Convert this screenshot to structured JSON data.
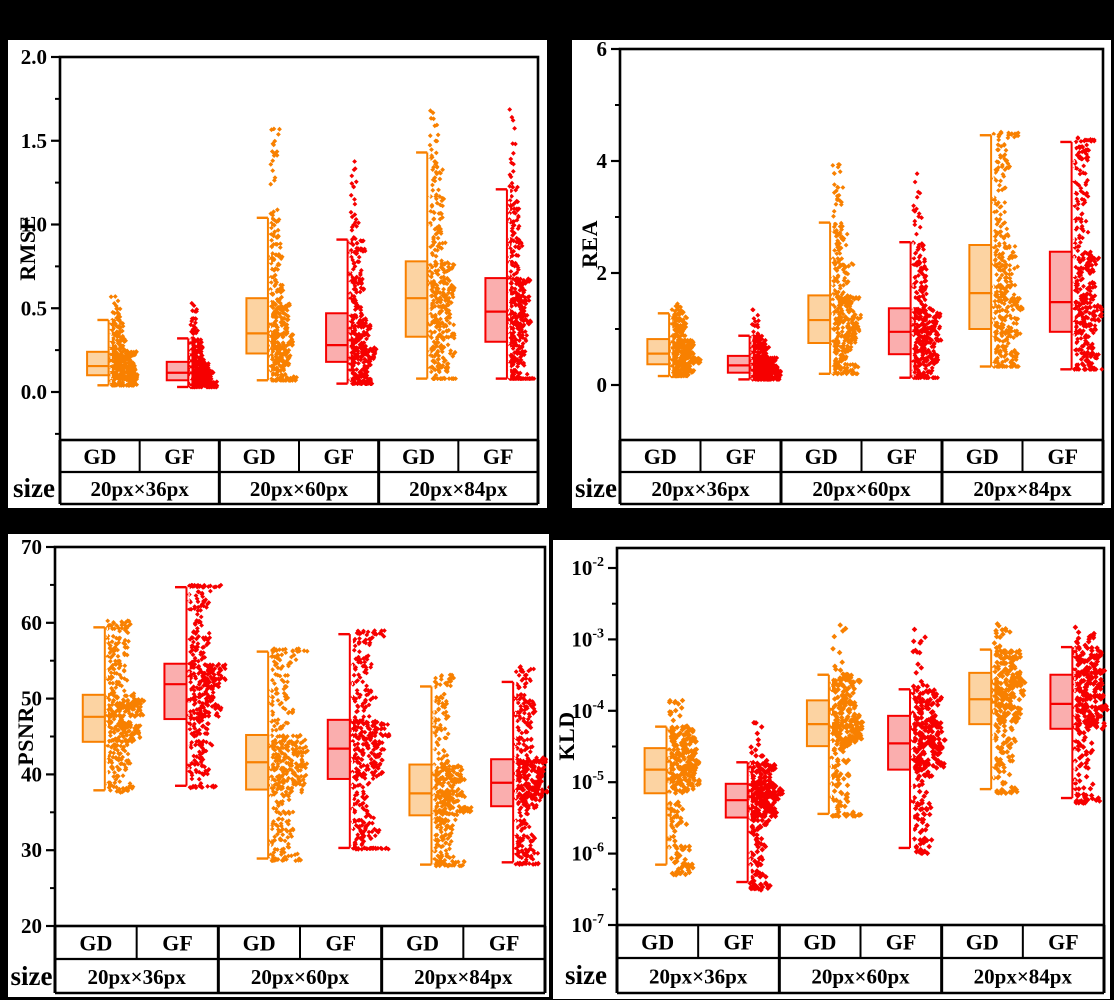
{
  "figure": {
    "background": "#000000",
    "panel_background": "#ffffff",
    "axis_color": "#000000"
  },
  "series_colors": {
    "GD": {
      "stroke": "#F88000",
      "fill": "#FCD3A2"
    },
    "GF": {
      "stroke": "#F60000",
      "fill": "#FAAEAE"
    }
  },
  "x_table": {
    "size_label": "size",
    "header_cells": [
      "GD",
      "GF",
      "GD",
      "GF",
      "GD",
      "GF"
    ],
    "size_groups": [
      "20px×36px",
      "20px×60px",
      "20px×84px"
    ]
  },
  "chart_data": [
    {
      "id": "rmse",
      "type": "box+scatter",
      "ylabel": "RMSE",
      "scale": "linear",
      "ylim": [
        -0.287,
        2.0
      ],
      "yticks": [
        {
          "v": 0.0,
          "t": "0.0"
        },
        {
          "v": 0.5,
          "t": "0.5"
        },
        {
          "v": 1.0,
          "t": "1.0"
        },
        {
          "v": 1.5,
          "t": "1.5"
        },
        {
          "v": 2.0,
          "t": "2.0"
        }
      ],
      "yminor": [
        -0.25,
        0.25,
        0.75,
        1.25,
        1.75
      ],
      "groups": [
        {
          "series": "GD",
          "size": "20px×36px",
          "stats": {
            "pmin": 0.04,
            "lo": 0.04,
            "q1": 0.1,
            "med": 0.155,
            "q3": 0.24,
            "hi": 0.43,
            "pmax": 0.58
          }
        },
        {
          "series": "GF",
          "size": "20px×36px",
          "stats": {
            "pmin": 0.03,
            "lo": 0.03,
            "q1": 0.07,
            "med": 0.115,
            "q3": 0.18,
            "hi": 0.32,
            "pmax": 0.53
          }
        },
        {
          "series": "GD",
          "size": "20px×60px",
          "stats": {
            "pmin": 0.07,
            "lo": 0.07,
            "q1": 0.23,
            "med": 0.35,
            "q3": 0.56,
            "hi": 1.04,
            "pmax": 1.6
          }
        },
        {
          "series": "GF",
          "size": "20px×60px",
          "stats": {
            "pmin": 0.05,
            "lo": 0.05,
            "q1": 0.18,
            "med": 0.28,
            "q3": 0.47,
            "hi": 0.91,
            "pmax": 1.38
          }
        },
        {
          "series": "GD",
          "size": "20px×84px",
          "stats": {
            "pmin": 0.08,
            "lo": 0.08,
            "q1": 0.33,
            "med": 0.56,
            "q3": 0.78,
            "hi": 1.43,
            "pmax": 1.72
          }
        },
        {
          "series": "GF",
          "size": "20px×84px",
          "stats": {
            "pmin": 0.08,
            "lo": 0.08,
            "q1": 0.3,
            "med": 0.48,
            "q3": 0.68,
            "hi": 1.21,
            "pmax": 1.69
          }
        }
      ]
    },
    {
      "id": "rea",
      "type": "box+scatter",
      "ylabel": "REA",
      "scale": "linear",
      "ylim": [
        -0.98,
        6
      ],
      "yticks": [
        {
          "v": 0,
          "t": "0"
        },
        {
          "v": 2,
          "t": "2"
        },
        {
          "v": 4,
          "t": "4"
        },
        {
          "v": 6,
          "t": "6"
        }
      ],
      "yminor": [
        1,
        3,
        5
      ],
      "groups": [
        {
          "series": "GD",
          "size": "20px×36px",
          "stats": {
            "pmin": 0.16,
            "lo": 0.16,
            "q1": 0.37,
            "med": 0.56,
            "q3": 0.82,
            "hi": 1.28,
            "pmax": 1.45
          }
        },
        {
          "series": "GF",
          "size": "20px×36px",
          "stats": {
            "pmin": 0.1,
            "lo": 0.1,
            "q1": 0.22,
            "med": 0.35,
            "q3": 0.52,
            "hi": 0.88,
            "pmax": 1.35
          }
        },
        {
          "series": "GD",
          "size": "20px×60px",
          "stats": {
            "pmin": 0.2,
            "lo": 0.2,
            "q1": 0.75,
            "med": 1.16,
            "q3": 1.6,
            "hi": 2.9,
            "pmax": 4.0
          }
        },
        {
          "series": "GF",
          "size": "20px×60px",
          "stats": {
            "pmin": 0.13,
            "lo": 0.13,
            "q1": 0.55,
            "med": 0.95,
            "q3": 1.37,
            "hi": 2.55,
            "pmax": 3.8
          }
        },
        {
          "series": "GD",
          "size": "20px×84px",
          "stats": {
            "pmin": 0.33,
            "lo": 0.33,
            "q1": 1.0,
            "med": 1.64,
            "q3": 2.5,
            "hi": 4.46,
            "pmax": 4.52
          }
        },
        {
          "series": "GF",
          "size": "20px×84px",
          "stats": {
            "pmin": 0.28,
            "lo": 0.28,
            "q1": 0.95,
            "med": 1.48,
            "q3": 2.38,
            "hi": 4.34,
            "pmax": 4.42
          }
        }
      ]
    },
    {
      "id": "psnr",
      "type": "box+scatter",
      "ylabel": "PSNR",
      "scale": "linear",
      "ylim": [
        20,
        70
      ],
      "yticks": [
        {
          "v": 20,
          "t": "20"
        },
        {
          "v": 30,
          "t": "30"
        },
        {
          "v": 40,
          "t": "40"
        },
        {
          "v": 50,
          "t": "50"
        },
        {
          "v": 60,
          "t": "60"
        },
        {
          "v": 70,
          "t": "70"
        }
      ],
      "yminor": [
        25,
        35,
        45,
        55,
        65
      ],
      "groups": [
        {
          "series": "GD",
          "size": "20px×36px",
          "stats": {
            "pmin": 37.6,
            "lo": 37.9,
            "q1": 44.3,
            "med": 47.6,
            "q3": 50.5,
            "hi": 59.4,
            "pmax": 60.4
          }
        },
        {
          "series": "GF",
          "size": "20px×36px",
          "stats": {
            "pmin": 38.2,
            "lo": 38.5,
            "q1": 47.3,
            "med": 51.9,
            "q3": 54.6,
            "hi": 64.7,
            "pmax": 65.0
          }
        },
        {
          "series": "GD",
          "size": "20px×60px",
          "stats": {
            "pmin": 28.6,
            "lo": 28.9,
            "q1": 38.0,
            "med": 41.6,
            "q3": 45.2,
            "hi": 56.2,
            "pmax": 56.6
          }
        },
        {
          "series": "GF",
          "size": "20px×60px",
          "stats": {
            "pmin": 30.1,
            "lo": 30.3,
            "q1": 39.4,
            "med": 43.4,
            "q3": 47.2,
            "hi": 58.5,
            "pmax": 59.0
          }
        },
        {
          "series": "GD",
          "size": "20px×84px",
          "stats": {
            "pmin": 27.9,
            "lo": 28.1,
            "q1": 34.6,
            "med": 37.5,
            "q3": 41.3,
            "hi": 51.6,
            "pmax": 53.2
          }
        },
        {
          "series": "GF",
          "size": "20px×84px",
          "stats": {
            "pmin": 28.1,
            "lo": 28.4,
            "q1": 35.8,
            "med": 38.9,
            "q3": 42.0,
            "hi": 52.2,
            "pmax": 54.5
          }
        }
      ]
    },
    {
      "id": "kld",
      "type": "box+scatter",
      "ylabel": "KLD",
      "scale": "log",
      "ylim": [
        1e-07,
        0.01905
      ],
      "yticks": [
        {
          "v": 0.01,
          "base": "10",
          "exp": "-2"
        },
        {
          "v": 0.001,
          "base": "10",
          "exp": "-3"
        },
        {
          "v": 0.0001,
          "base": "10",
          "exp": "-4"
        },
        {
          "v": 1e-05,
          "base": "10",
          "exp": "-5"
        },
        {
          "v": 1e-06,
          "base": "10",
          "exp": "-6"
        },
        {
          "v": 1e-07,
          "base": "10",
          "exp": "-7"
        }
      ],
      "yminor": [
        0.003162,
        0.0003162,
        3.162e-05,
        3.162e-06,
        3.162e-07
      ],
      "groups": [
        {
          "series": "GD",
          "size": "20px×36px",
          "stats": {
            "pmin": 5e-07,
            "lo": 7e-07,
            "q1": 7e-06,
            "med": 1.5e-05,
            "q3": 3e-05,
            "hi": 6e-05,
            "pmax": 0.00015
          }
        },
        {
          "series": "GF",
          "size": "20px×36px",
          "stats": {
            "pmin": 3e-07,
            "lo": 4e-07,
            "q1": 3.2e-06,
            "med": 5.6e-06,
            "q3": 9.5e-06,
            "hi": 1.9e-05,
            "pmax": 7e-05
          }
        },
        {
          "series": "GD",
          "size": "20px×60px",
          "stats": {
            "pmin": 3.3e-06,
            "lo": 3.6e-06,
            "q1": 3.2e-05,
            "med": 6.5e-05,
            "q3": 0.00014,
            "hi": 0.00032,
            "pmax": 0.0019
          }
        },
        {
          "series": "GF",
          "size": "20px×60px",
          "stats": {
            "pmin": 1e-06,
            "lo": 1.2e-06,
            "q1": 1.5e-05,
            "med": 3.5e-05,
            "q3": 8.5e-05,
            "hi": 0.0002,
            "pmax": 0.0015
          }
        },
        {
          "series": "GD",
          "size": "20px×84px",
          "stats": {
            "pmin": 7e-06,
            "lo": 8e-06,
            "q1": 6.5e-05,
            "med": 0.000145,
            "q3": 0.00034,
            "hi": 0.00072,
            "pmax": 0.0017
          }
        },
        {
          "series": "GF",
          "size": "20px×84px",
          "stats": {
            "pmin": 5e-06,
            "lo": 6e-06,
            "q1": 5.6e-05,
            "med": 0.000125,
            "q3": 0.00032,
            "hi": 0.00078,
            "pmax": 0.0017
          }
        }
      ]
    }
  ]
}
